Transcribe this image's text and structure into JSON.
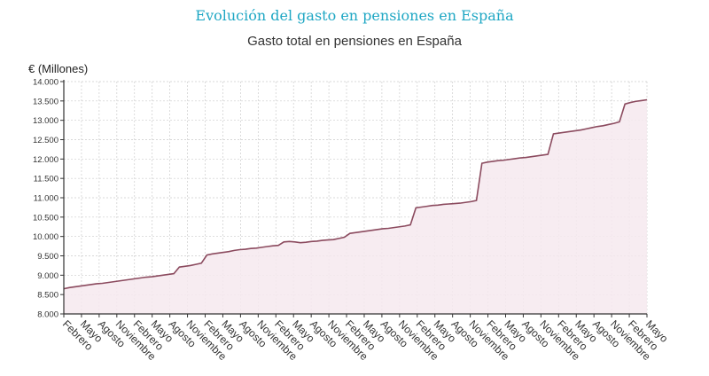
{
  "header": {
    "suptitle": "Evolución del gasto en pensiones en España",
    "title": "Gasto total en pensiones en España"
  },
  "colors": {
    "suptitle": "#1fa7c4",
    "line": "#8b4a5e",
    "fill": "#f6e9ee",
    "grid": "#cccccc"
  },
  "chart_data": {
    "type": "area",
    "title": "Gasto total en pensiones en España",
    "ylabel": "€ (Millones)",
    "xlabel": "",
    "ylim": [
      8000,
      14000
    ],
    "yticks": [
      8000,
      8500,
      9000,
      9500,
      10000,
      10500,
      11000,
      11500,
      12000,
      12500,
      13000,
      13500,
      14000
    ],
    "ytick_labels": [
      "8.000",
      "8.500",
      "9.000",
      "9.500",
      "10.000",
      "10.500",
      "11.000",
      "11.500",
      "12.000",
      "12.500",
      "13.000",
      "13.500",
      "14.000"
    ],
    "xtick_labels": [
      "Febrero",
      "Mayo",
      "Agosto",
      "Noviembre",
      "Febrero",
      "Mayo",
      "Agosto",
      "Noviembre",
      "Febrero",
      "Mayo",
      "Agosto",
      "Noviembre",
      "Febrero",
      "Mayo",
      "Agosto",
      "Noviembre",
      "Febrero",
      "Mayo",
      "Agosto",
      "Noviembre",
      "Febrero",
      "Mayo",
      "Agosto",
      "Noviembre",
      "Febrero",
      "Mayo",
      "Agosto",
      "Noviembre",
      "Febrero",
      "Mayo",
      "Agosto",
      "Noviembre",
      "Febrero",
      "Mayo"
    ],
    "grid": true,
    "series": [
      {
        "values": [
          8650,
          8680,
          8700,
          8720,
          8740,
          8760,
          8780,
          8790,
          8810,
          8830,
          8850,
          8870,
          8890,
          8910,
          8930,
          8950,
          8960,
          8980,
          9000,
          9020,
          9040,
          9210,
          9230,
          9250,
          9280,
          9310,
          9520,
          9550,
          9570,
          9590,
          9610,
          9640,
          9660,
          9670,
          9690,
          9700,
          9720,
          9740,
          9760,
          9770,
          9860,
          9870,
          9860,
          9840,
          9850,
          9870,
          9880,
          9900,
          9910,
          9920,
          9950,
          9980,
          10080,
          10100,
          10120,
          10140,
          10160,
          10180,
          10200,
          10210,
          10230,
          10250,
          10270,
          10300,
          10740,
          10760,
          10780,
          10800,
          10810,
          10830,
          10840,
          10850,
          10860,
          10880,
          10900,
          10930,
          11890,
          11920,
          11940,
          11960,
          11970,
          11990,
          12010,
          12030,
          12040,
          12060,
          12080,
          12100,
          12120,
          12650,
          12670,
          12690,
          12710,
          12730,
          12750,
          12780,
          12810,
          12840,
          12860,
          12890,
          12920,
          12960,
          13420,
          13460,
          13490,
          13510,
          13530
        ]
      }
    ]
  }
}
